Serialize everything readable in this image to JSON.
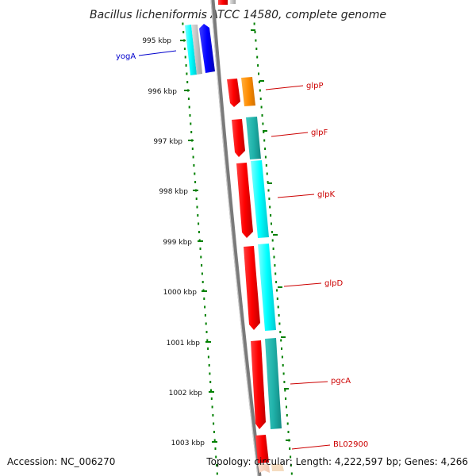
{
  "title": "Bacillus licheniformis ATCC 14580, complete genome",
  "accession": "Accession: NC_006270",
  "topology": "Topology: circular; Length: 4,222,597 bp; Genes: 4,266",
  "colors": {
    "red": "#ff0000",
    "orange": "#ff8c00",
    "cyan": "#00ffff",
    "teal": "#20b2aa",
    "blue": "#0000ff",
    "silver": "#c0c0c0",
    "backbone": "#808080",
    "tick": "#008000",
    "label_red": "#cc0000",
    "label_blue": "#0000cc"
  },
  "ticks": [
    {
      "label": "995 kbp"
    },
    {
      "label": "996 kbp"
    },
    {
      "label": "997 kbp"
    },
    {
      "label": "998 kbp"
    },
    {
      "label": "999 kbp"
    },
    {
      "label": "1000 kbp"
    },
    {
      "label": "1001 kbp"
    },
    {
      "label": "1002 kbp"
    },
    {
      "label": "1003 kbp"
    }
  ],
  "genes": [
    {
      "name": "yogA",
      "color": "blue"
    },
    {
      "name": "glpP",
      "color": "red"
    },
    {
      "name": "glpF",
      "color": "red"
    },
    {
      "name": "glpK",
      "color": "red"
    },
    {
      "name": "glpD",
      "color": "red"
    },
    {
      "name": "pgcA",
      "color": "red"
    },
    {
      "name": "BL02900",
      "color": "red"
    }
  ]
}
